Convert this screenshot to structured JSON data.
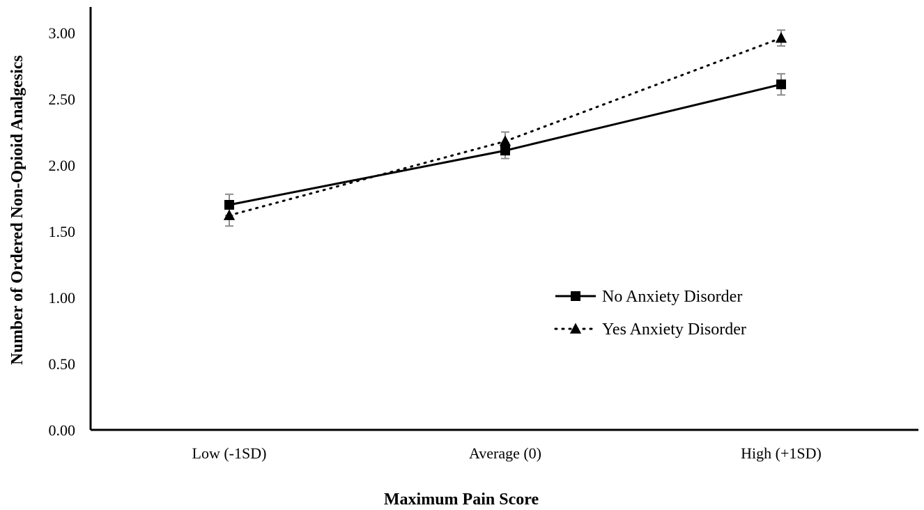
{
  "chart_data": {
    "type": "line",
    "title": "",
    "xlabel": "Maximum Pain Score",
    "ylabel": "Number of Ordered Non-Opioid Analgesics",
    "categories": [
      "Low (-1SD)",
      "Average (0)",
      "High (+1SD)"
    ],
    "ylim": [
      0,
      3.0
    ],
    "yticks": [
      "0.00",
      "0.50",
      "1.00",
      "1.50",
      "2.00",
      "2.50",
      "3.00"
    ],
    "grid": false,
    "legend_position": "center-right",
    "series": [
      {
        "name": "No Anxiety Disorder",
        "values": [
          1.7,
          2.11,
          2.61
        ],
        "error": [
          0.08,
          0.06,
          0.08
        ],
        "marker": "square",
        "line_style": "solid",
        "color": "#000000"
      },
      {
        "name": "Yes Anxiety Disorder",
        "values": [
          1.62,
          2.18,
          2.96
        ],
        "error": [
          0.08,
          0.07,
          0.06
        ],
        "marker": "triangle",
        "line_style": "dotted",
        "color": "#000000"
      }
    ],
    "error_bar_color": "#8c8c8c"
  }
}
